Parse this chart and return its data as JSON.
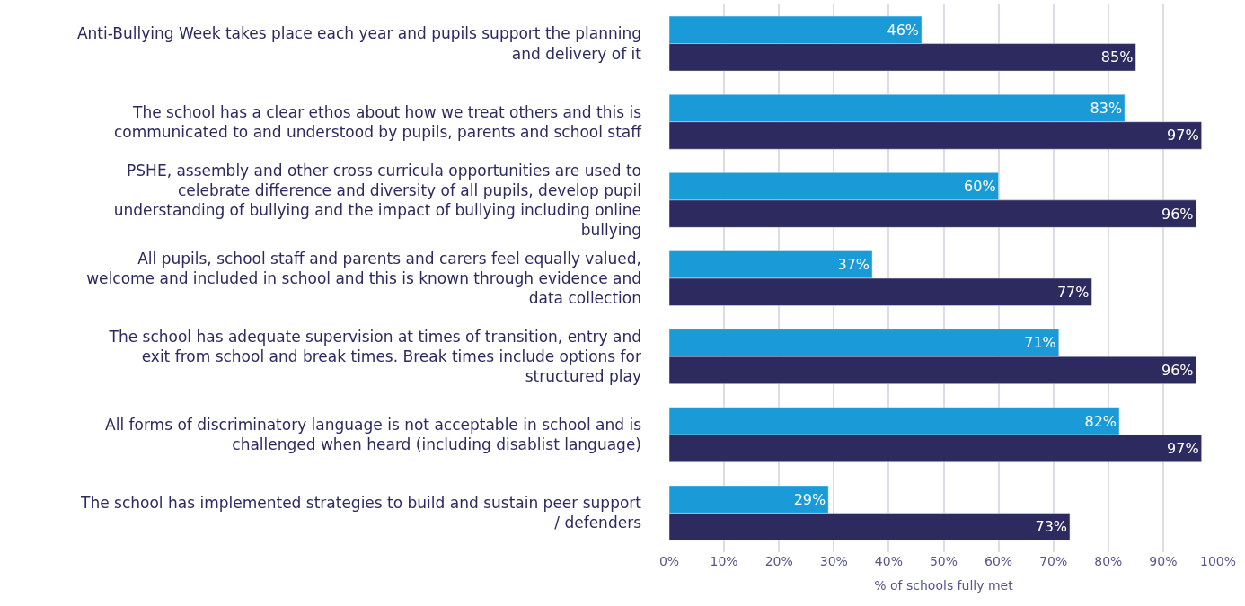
{
  "chart_data": {
    "type": "bar",
    "orientation": "horizontal",
    "xlabel": "% of schools fully met",
    "categories": [
      "Anti-Bullying Week takes place each year and pupils support the planning and delivery of it",
      "The school has a clear ethos about how we treat others and this is communicated to and understood by pupils, parents and school staff",
      "PSHE, assembly and other cross curricula opportunities are used to celebrate difference and diversity of all pupils, develop pupil understanding of bullying and the impact of bullying including online bullying",
      "All pupils, school staff and parents and carers feel equally valued, welcome and included in school and this is known through evidence and data collection",
      "The school has adequate supervision at times of transition, entry and exit from school and break times. Break times include options for structured play",
      "All forms of discriminatory language is not acceptable in school and is challenged when heard (including disablist language)",
      "The school has implemented strategies to build and sustain peer support / defenders"
    ],
    "series": [
      {
        "color": "#1a9bd8",
        "values": [
          46,
          83,
          60,
          37,
          71,
          82,
          29
        ],
        "value_labels": [
          "46%",
          "83%",
          "60%",
          "37%",
          "71%",
          "82%",
          "29%"
        ]
      },
      {
        "color": "#2d2a60",
        "values": [
          85,
          97,
          96,
          77,
          96,
          97,
          73
        ],
        "value_labels": [
          "85%",
          "97%",
          "96%",
          "77%",
          "96%",
          "97%",
          "73%"
        ]
      }
    ],
    "xlim": [
      0,
      100
    ],
    "xticks": [
      {
        "value": 0,
        "label": "0%"
      },
      {
        "value": 10,
        "label": "10%"
      },
      {
        "value": 20,
        "label": "20%"
      },
      {
        "value": 30,
        "label": "30%"
      },
      {
        "value": 40,
        "label": "40%"
      },
      {
        "value": 50,
        "label": "50%"
      },
      {
        "value": 60,
        "label": "60%"
      },
      {
        "value": 70,
        "label": "70%"
      },
      {
        "value": 80,
        "label": "80%"
      },
      {
        "value": 90,
        "label": "90%"
      },
      {
        "value": 100,
        "label": "100%"
      }
    ],
    "grid": "x",
    "legend": false
  }
}
